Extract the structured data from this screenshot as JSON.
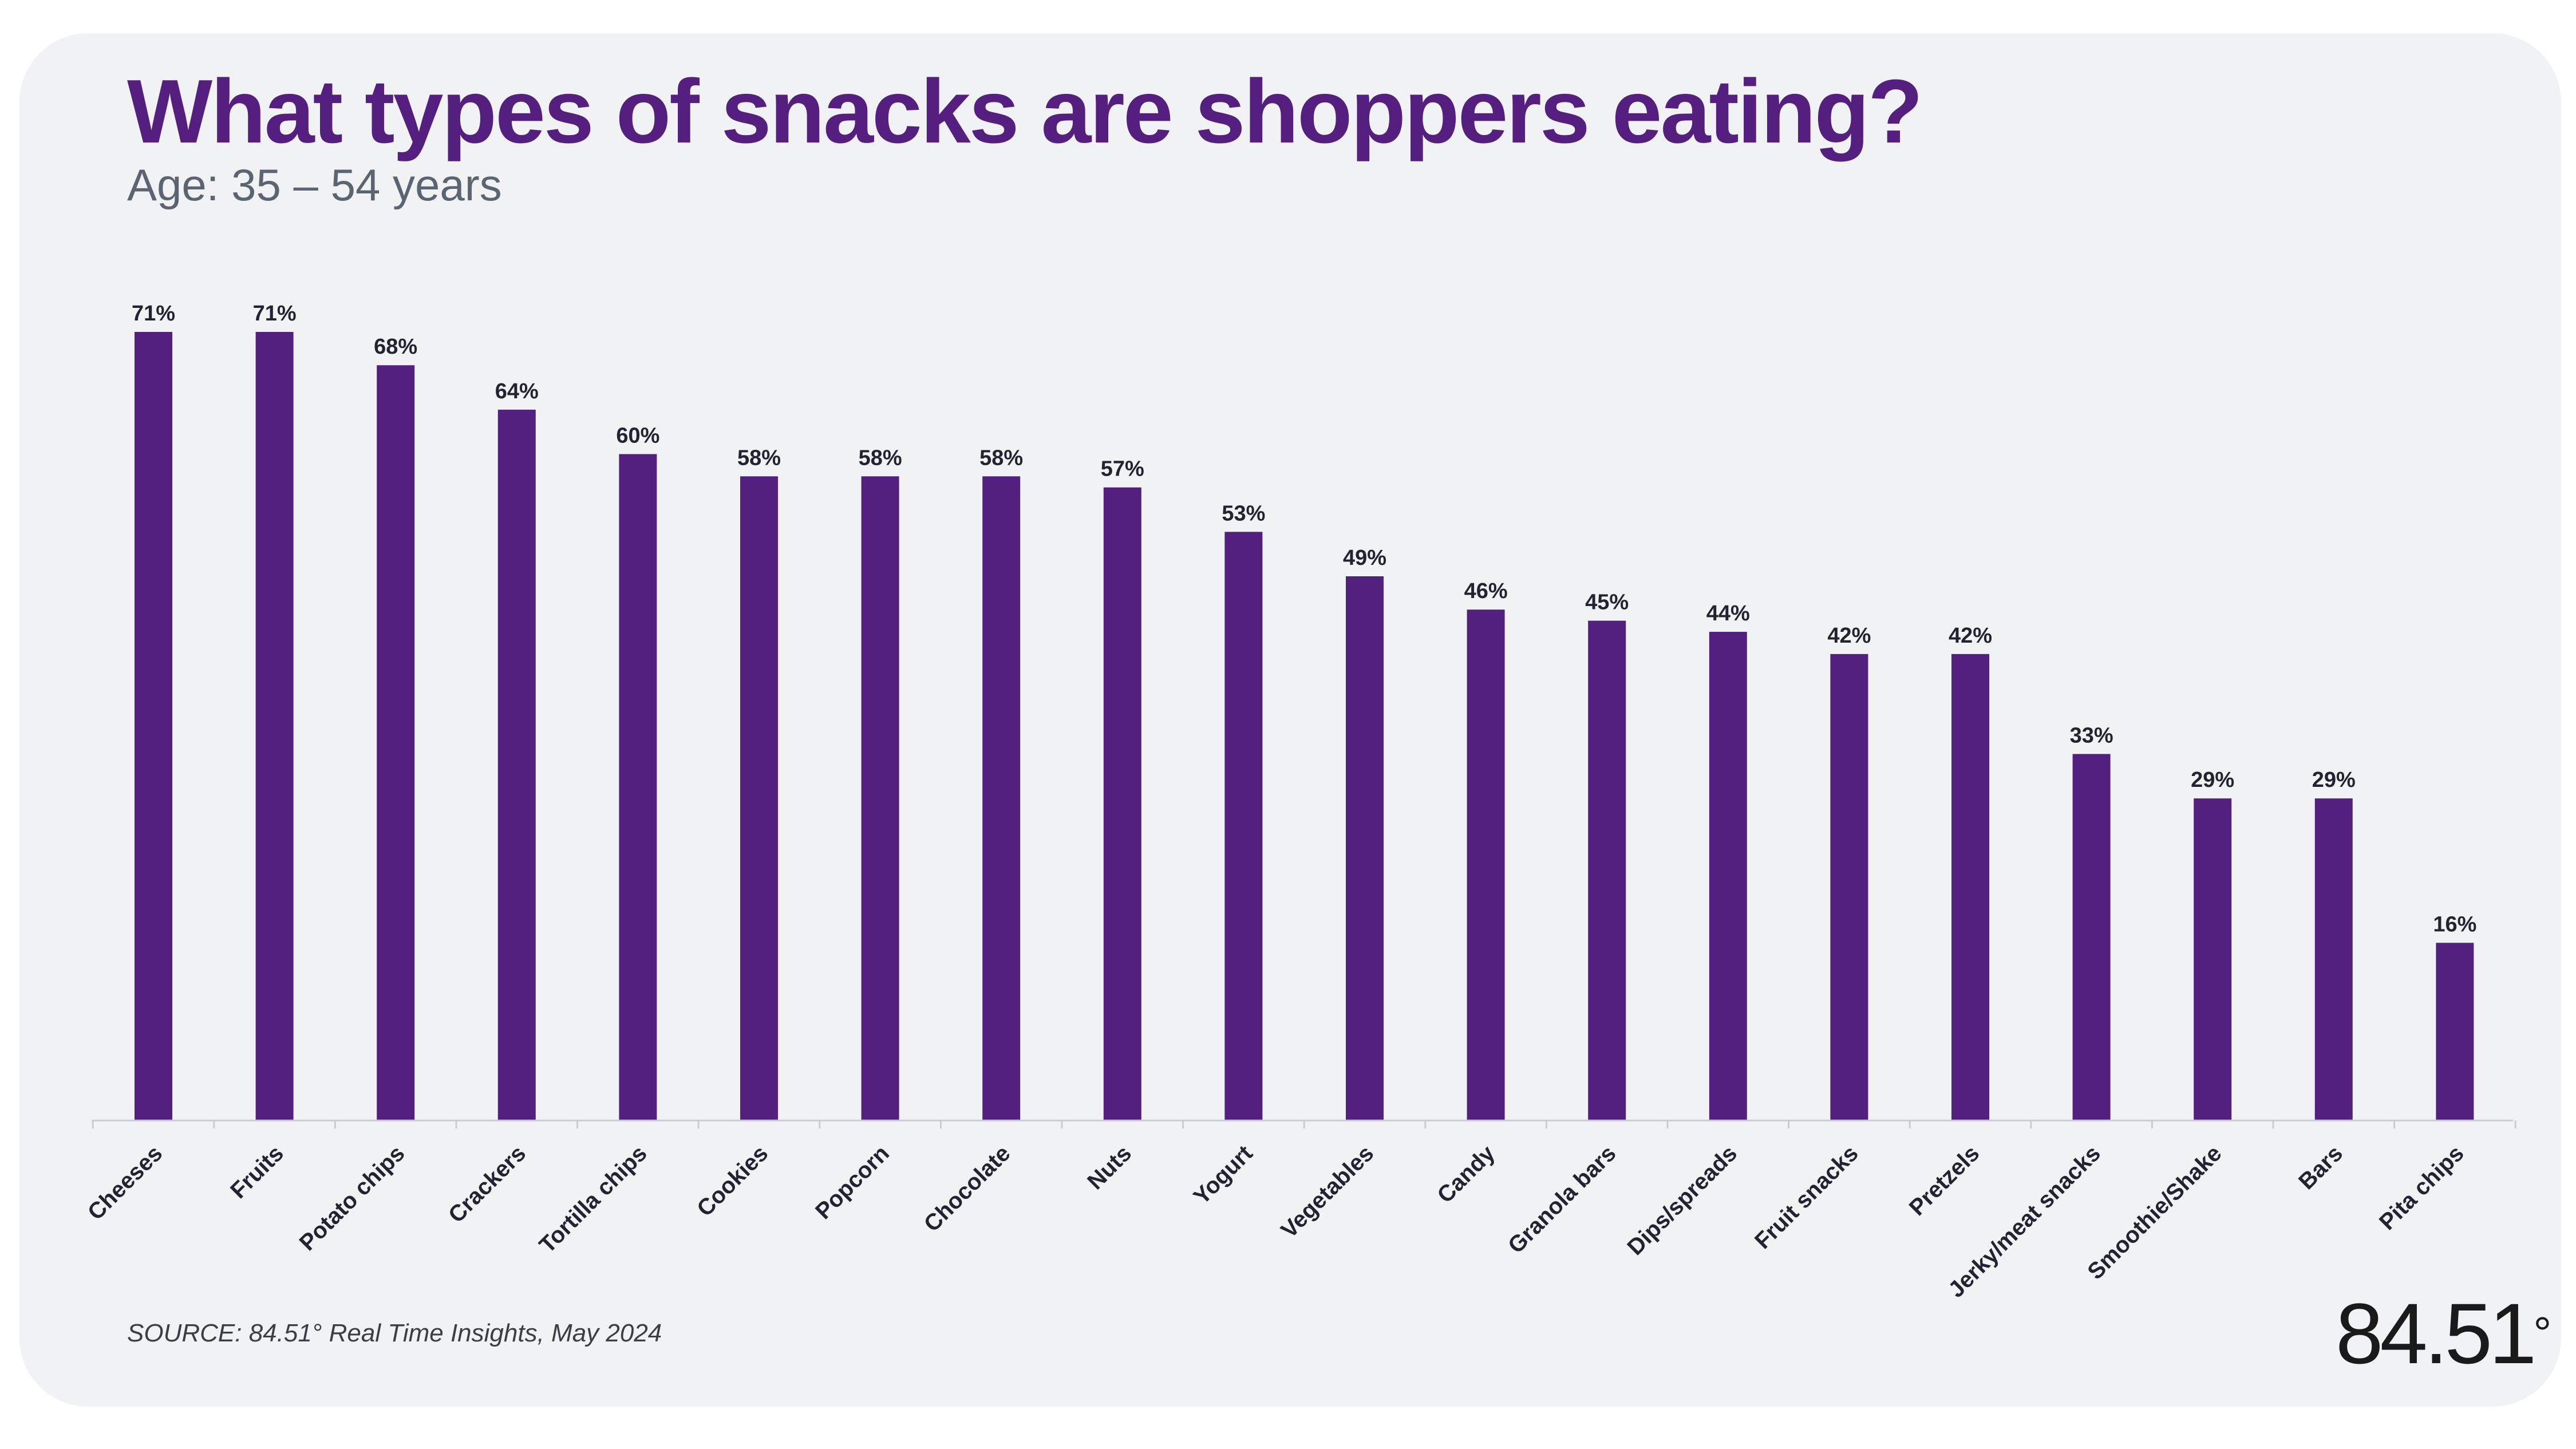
{
  "header": {
    "title": "What types of snacks are shoppers eating?",
    "subtitle": "Age: 35 – 54 years"
  },
  "footer": {
    "source": "SOURCE: 84.51° Real Time Insights, May 2024",
    "logo_text": "84.51",
    "logo_degree": "°"
  },
  "colors": {
    "bar": "#53207f",
    "title": "#551f80",
    "axis": "#c9cdd3",
    "label_text": "#1f2430",
    "background": "#f1f2f4"
  },
  "chart_data": {
    "type": "bar",
    "title": "What types of snacks are shoppers eating?",
    "subtitle": "Age: 35 – 54 years",
    "xlabel": "",
    "ylabel": "",
    "ylim": [
      0,
      71
    ],
    "value_suffix": "%",
    "grid": false,
    "categories": [
      "Cheeses",
      "Fruits",
      "Potato chips",
      "Crackers",
      "Tortilla chips",
      "Cookies",
      "Popcorn",
      "Chocolate",
      "Nuts",
      "Yogurt",
      "Vegetables",
      "Candy",
      "Granola bars",
      "Dips/spreads",
      "Fruit snacks",
      "Pretzels",
      "Jerky/meat snacks",
      "Smoothie/Shake",
      "Bars",
      "Pita chips"
    ],
    "values": [
      71,
      71,
      68,
      64,
      60,
      58,
      58,
      58,
      57,
      53,
      49,
      46,
      45,
      44,
      42,
      42,
      33,
      29,
      29,
      16
    ],
    "data_labels": [
      "71%",
      "71%",
      "68%",
      "64%",
      "60%",
      "58%",
      "58%",
      "58%",
      "57%",
      "53%",
      "49%",
      "46%",
      "45%",
      "44%",
      "42%",
      "42%",
      "33%",
      "29%",
      "29%",
      "16%"
    ]
  }
}
